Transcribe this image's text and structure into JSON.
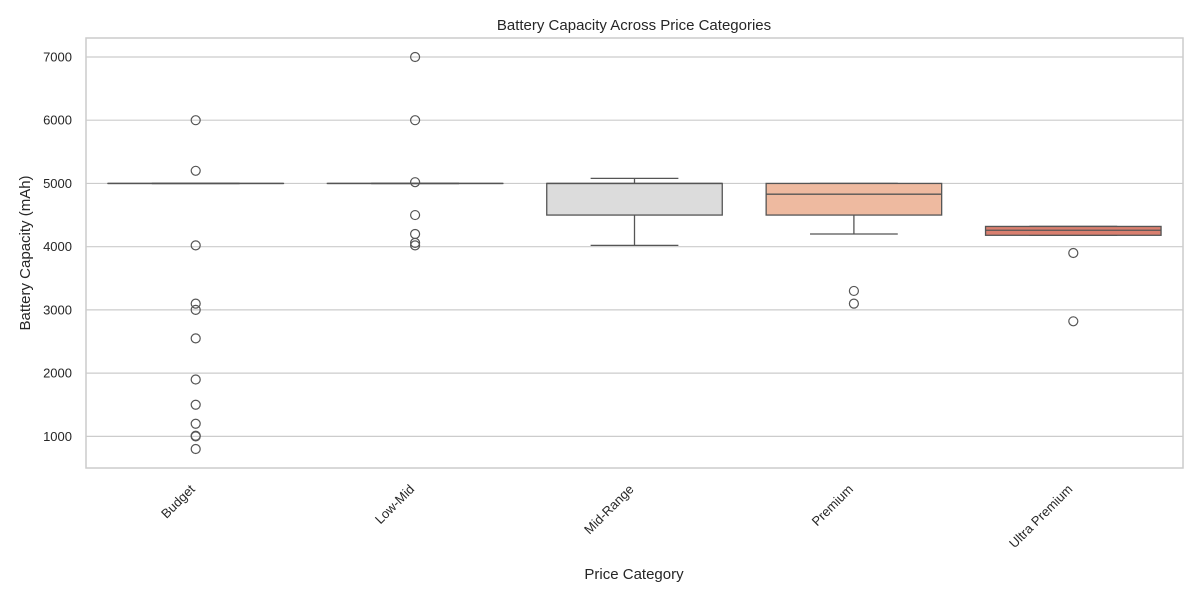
{
  "chart_data": {
    "type": "box",
    "title": "Battery Capacity Across Price Categories",
    "xlabel": "Price Category",
    "ylabel": "Battery Capacity (mAh)",
    "ylim": [
      500,
      7300
    ],
    "yticks": [
      1000,
      2000,
      3000,
      4000,
      5000,
      6000,
      7000
    ],
    "grid": true,
    "categories": [
      "Budget",
      "Low-Mid",
      "Mid-Range",
      "Premium",
      "Ultra Premium"
    ],
    "boxes": [
      {
        "category": "Budget",
        "color": "#f0f0f0",
        "whisker_low": 5000,
        "q1": 5000,
        "median": 5000,
        "q3": 5000,
        "whisker_high": 5000,
        "outliers": [
          6000,
          5200,
          4020,
          3100,
          3000,
          2550,
          1900,
          1500,
          1200,
          1010,
          1000,
          800
        ]
      },
      {
        "category": "Low-Mid",
        "color": "#f0f0f0",
        "whisker_low": 5000,
        "q1": 5000,
        "median": 5000,
        "q3": 5000,
        "whisker_high": 5000,
        "outliers": [
          7000,
          6000,
          5020,
          4500,
          4200,
          4060,
          4020
        ]
      },
      {
        "category": "Mid-Range",
        "color": "#dcdcdc",
        "whisker_low": 4020,
        "q1": 4500,
        "median": 5000,
        "q3": 5000,
        "whisker_high": 5080,
        "outliers": []
      },
      {
        "category": "Premium",
        "color": "#eebaa0",
        "whisker_low": 4200,
        "q1": 4500,
        "median": 4830,
        "q3": 5000,
        "whisker_high": 5000,
        "outliers": [
          3300,
          3100
        ]
      },
      {
        "category": "Ultra Premium",
        "color": "#d97f6f",
        "whisker_low": 4180,
        "q1": 4180,
        "median": 4260,
        "q3": 4320,
        "whisker_high": 4320,
        "outliers": [
          3900,
          2820
        ]
      }
    ]
  }
}
